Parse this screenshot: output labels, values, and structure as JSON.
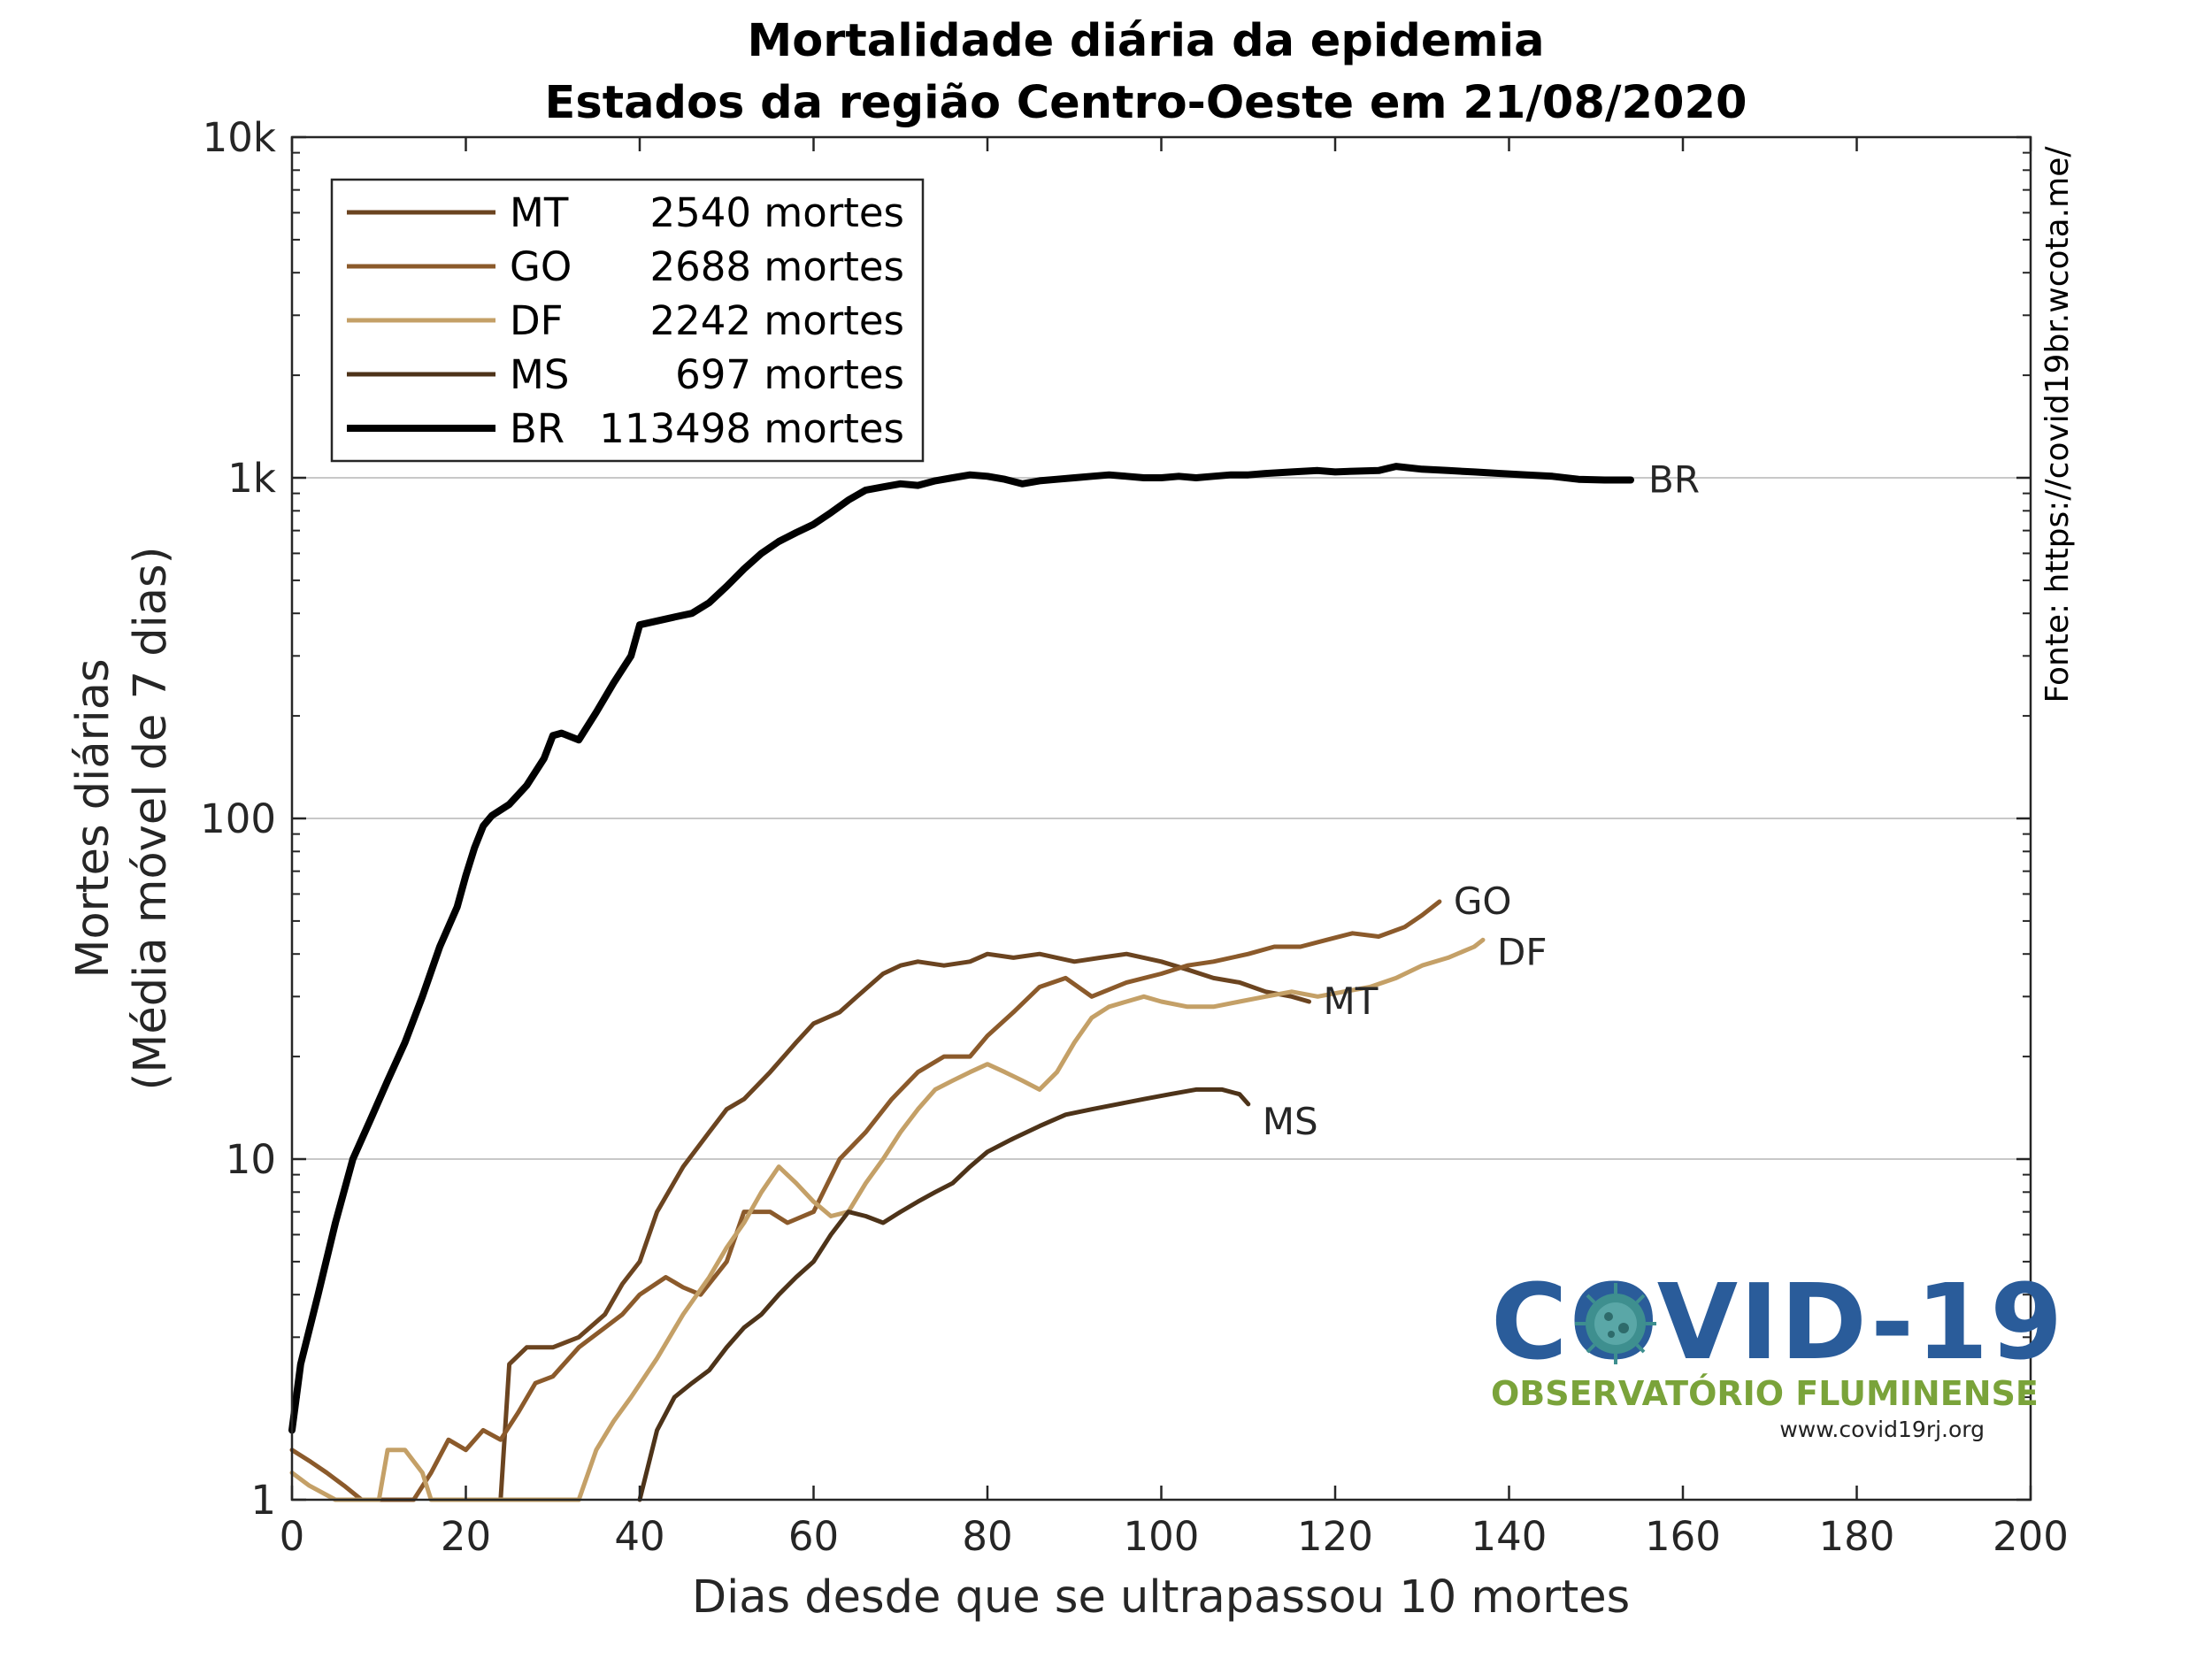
{
  "chart_data": {
    "type": "line",
    "title": "Mortalidade diária da epidemia",
    "subtitle": "Estados da região Centro-Oeste em 21/08/2020",
    "xlabel": "Dias desde que se ultrapassou 10 mortes",
    "ylabel": [
      "Mortes diárias",
      "(Média móvel de 7 dias)"
    ],
    "xlim": [
      0,
      200
    ],
    "ylim": [
      1,
      10000
    ],
    "yscale": "log",
    "grid": "y-major",
    "legend_placement": "top-left",
    "x_ticks": [
      "0",
      "20",
      "40",
      "60",
      "80",
      "100",
      "120",
      "140",
      "160",
      "180",
      "200"
    ],
    "y_ticks": [
      "1",
      "10",
      "100",
      "1k",
      "10k"
    ],
    "source_note": "Fonte: https://covid19br.wcota.me/",
    "series": [
      {
        "name": "MT",
        "legend_label": "MT",
        "deaths_label": "2540 mortes",
        "end_label": "MT",
        "color": "#6b4420",
        "points": [
          [
            24,
            1
          ],
          [
            25,
            2.5
          ],
          [
            27,
            2.8
          ],
          [
            30,
            2.8
          ],
          [
            33,
            3
          ],
          [
            36,
            3.5
          ],
          [
            38,
            4.3
          ],
          [
            40,
            5
          ],
          [
            42,
            7
          ],
          [
            45,
            9.5
          ],
          [
            48,
            12
          ],
          [
            50,
            14
          ],
          [
            52,
            15
          ],
          [
            55,
            18
          ],
          [
            58,
            22
          ],
          [
            60,
            25
          ],
          [
            63,
            27
          ],
          [
            65,
            30
          ],
          [
            68,
            35
          ],
          [
            70,
            37
          ],
          [
            72,
            38
          ],
          [
            75,
            37
          ],
          [
            78,
            38
          ],
          [
            80,
            40
          ],
          [
            83,
            39
          ],
          [
            86,
            40
          ],
          [
            90,
            38
          ],
          [
            93,
            39
          ],
          [
            96,
            40
          ],
          [
            100,
            38
          ],
          [
            103,
            36
          ],
          [
            106,
            34
          ],
          [
            109,
            33
          ],
          [
            112,
            31
          ],
          [
            115,
            30
          ],
          [
            117,
            29
          ]
        ]
      },
      {
        "name": "GO",
        "legend_label": "GO",
        "deaths_label": "2688 mortes",
        "end_label": "GO",
        "color": "#8b5a2b",
        "points": [
          [
            0,
            1.4
          ],
          [
            2,
            1.3
          ],
          [
            4,
            1.2
          ],
          [
            6,
            1.1
          ],
          [
            8,
            1.0
          ],
          [
            10,
            1.0
          ],
          [
            14,
            1.0
          ],
          [
            16,
            1.2
          ],
          [
            18,
            1.5
          ],
          [
            20,
            1.4
          ],
          [
            22,
            1.6
          ],
          [
            24,
            1.5
          ],
          [
            26,
            1.8
          ],
          [
            28,
            2.2
          ],
          [
            30,
            2.3
          ],
          [
            33,
            2.8
          ],
          [
            36,
            3.2
          ],
          [
            38,
            3.5
          ],
          [
            40,
            4
          ],
          [
            43,
            4.5
          ],
          [
            45,
            4.2
          ],
          [
            47,
            4
          ],
          [
            50,
            5
          ],
          [
            52,
            7
          ],
          [
            55,
            7
          ],
          [
            57,
            6.5
          ],
          [
            60,
            7
          ],
          [
            63,
            10
          ],
          [
            66,
            12
          ],
          [
            69,
            15
          ],
          [
            72,
            18
          ],
          [
            75,
            20
          ],
          [
            78,
            20
          ],
          [
            80,
            23
          ],
          [
            83,
            27
          ],
          [
            86,
            32
          ],
          [
            89,
            34
          ],
          [
            92,
            30
          ],
          [
            96,
            33
          ],
          [
            100,
            35
          ],
          [
            103,
            37
          ],
          [
            106,
            38
          ],
          [
            110,
            40
          ],
          [
            113,
            42
          ],
          [
            116,
            42
          ],
          [
            119,
            44
          ],
          [
            122,
            46
          ],
          [
            125,
            45
          ],
          [
            128,
            48
          ],
          [
            130,
            52
          ],
          [
            132,
            57
          ]
        ]
      },
      {
        "name": "DF",
        "legend_label": "DF",
        "deaths_label": "2242 mortes",
        "end_label": "DF",
        "color": "#c4a067",
        "points": [
          [
            0,
            1.2
          ],
          [
            2,
            1.1
          ],
          [
            5,
            1.0
          ],
          [
            10,
            1.0
          ],
          [
            11,
            1.4
          ],
          [
            13,
            1.4
          ],
          [
            15,
            1.2
          ],
          [
            16,
            1.0
          ],
          [
            33,
            1.0
          ],
          [
            35,
            1.4
          ],
          [
            37,
            1.7
          ],
          [
            39,
            2.0
          ],
          [
            42,
            2.6
          ],
          [
            45,
            3.5
          ],
          [
            48,
            4.5
          ],
          [
            50,
            5.5
          ],
          [
            52,
            6.5
          ],
          [
            54,
            8
          ],
          [
            56,
            9.5
          ],
          [
            58,
            8.5
          ],
          [
            60,
            7.5
          ],
          [
            62,
            6.8
          ],
          [
            64,
            7
          ],
          [
            66,
            8.5
          ],
          [
            68,
            10
          ],
          [
            70,
            12
          ],
          [
            72,
            14
          ],
          [
            74,
            16
          ],
          [
            76,
            17
          ],
          [
            78,
            18
          ],
          [
            80,
            19
          ],
          [
            82,
            18
          ],
          [
            84,
            17
          ],
          [
            86,
            16
          ],
          [
            88,
            18
          ],
          [
            90,
            22
          ],
          [
            92,
            26
          ],
          [
            94,
            28
          ],
          [
            96,
            29
          ],
          [
            98,
            30
          ],
          [
            100,
            29
          ],
          [
            103,
            28
          ],
          [
            106,
            28
          ],
          [
            109,
            29
          ],
          [
            112,
            30
          ],
          [
            115,
            31
          ],
          [
            118,
            30
          ],
          [
            121,
            31
          ],
          [
            124,
            32
          ],
          [
            127,
            34
          ],
          [
            130,
            37
          ],
          [
            133,
            39
          ],
          [
            136,
            42
          ],
          [
            137,
            44
          ]
        ]
      },
      {
        "name": "MS",
        "legend_label": "MS",
        "deaths_label": "697 mortes",
        "end_label": "MS",
        "color": "#4d3319",
        "points": [
          [
            40,
            1.0
          ],
          [
            42,
            1.6
          ],
          [
            44,
            2.0
          ],
          [
            46,
            2.2
          ],
          [
            48,
            2.4
          ],
          [
            50,
            2.8
          ],
          [
            52,
            3.2
          ],
          [
            54,
            3.5
          ],
          [
            56,
            4
          ],
          [
            58,
            4.5
          ],
          [
            60,
            5
          ],
          [
            62,
            6
          ],
          [
            64,
            7
          ],
          [
            66,
            6.8
          ],
          [
            68,
            6.5
          ],
          [
            70,
            7
          ],
          [
            72,
            7.5
          ],
          [
            74,
            8
          ],
          [
            76,
            8.5
          ],
          [
            78,
            9.5
          ],
          [
            80,
            10.5
          ],
          [
            83,
            11.5
          ],
          [
            86,
            12.5
          ],
          [
            89,
            13.5
          ],
          [
            92,
            14
          ],
          [
            95,
            14.5
          ],
          [
            98,
            15
          ],
          [
            101,
            15.5
          ],
          [
            104,
            16
          ],
          [
            107,
            16
          ],
          [
            109,
            15.5
          ],
          [
            110,
            14.5
          ]
        ]
      },
      {
        "name": "BR",
        "legend_label": "BR",
        "deaths_label": "113498 mortes",
        "end_label": "BR",
        "color": "#000000",
        "points": [
          [
            0,
            1.6
          ],
          [
            1,
            2.5
          ],
          [
            3,
            4
          ],
          [
            5,
            6.5
          ],
          [
            7,
            10
          ],
          [
            9,
            13
          ],
          [
            11,
            17
          ],
          [
            13,
            22
          ],
          [
            15,
            30
          ],
          [
            17,
            42
          ],
          [
            19,
            55
          ],
          [
            20,
            68
          ],
          [
            21,
            82
          ],
          [
            22,
            95
          ],
          [
            23,
            102
          ],
          [
            25,
            110
          ],
          [
            27,
            125
          ],
          [
            29,
            150
          ],
          [
            30,
            175
          ],
          [
            31,
            178
          ],
          [
            33,
            170
          ],
          [
            35,
            205
          ],
          [
            37,
            250
          ],
          [
            39,
            300
          ],
          [
            40,
            370
          ],
          [
            42,
            380
          ],
          [
            44,
            390
          ],
          [
            46,
            400
          ],
          [
            48,
            430
          ],
          [
            50,
            480
          ],
          [
            52,
            540
          ],
          [
            54,
            600
          ],
          [
            56,
            650
          ],
          [
            58,
            690
          ],
          [
            60,
            730
          ],
          [
            62,
            790
          ],
          [
            64,
            860
          ],
          [
            66,
            920
          ],
          [
            68,
            940
          ],
          [
            70,
            960
          ],
          [
            72,
            950
          ],
          [
            74,
            980
          ],
          [
            76,
            1000
          ],
          [
            78,
            1020
          ],
          [
            80,
            1010
          ],
          [
            82,
            990
          ],
          [
            84,
            960
          ],
          [
            86,
            980
          ],
          [
            88,
            990
          ],
          [
            90,
            1000
          ],
          [
            92,
            1010
          ],
          [
            94,
            1020
          ],
          [
            96,
            1010
          ],
          [
            98,
            1000
          ],
          [
            100,
            1000
          ],
          [
            102,
            1010
          ],
          [
            104,
            1000
          ],
          [
            106,
            1010
          ],
          [
            108,
            1020
          ],
          [
            110,
            1020
          ],
          [
            112,
            1030
          ],
          [
            115,
            1040
          ],
          [
            118,
            1050
          ],
          [
            120,
            1040
          ],
          [
            122,
            1045
          ],
          [
            125,
            1050
          ],
          [
            127,
            1080
          ],
          [
            130,
            1060
          ],
          [
            133,
            1050
          ],
          [
            136,
            1040
          ],
          [
            139,
            1030
          ],
          [
            142,
            1020
          ],
          [
            145,
            1010
          ],
          [
            148,
            990
          ],
          [
            151,
            985
          ],
          [
            154,
            985
          ]
        ]
      }
    ]
  },
  "logo": {
    "word": "COVID-19",
    "subtitle": "OBSERVATÓRIO FLUMINENSE",
    "url": "www.covid19rj.org"
  }
}
